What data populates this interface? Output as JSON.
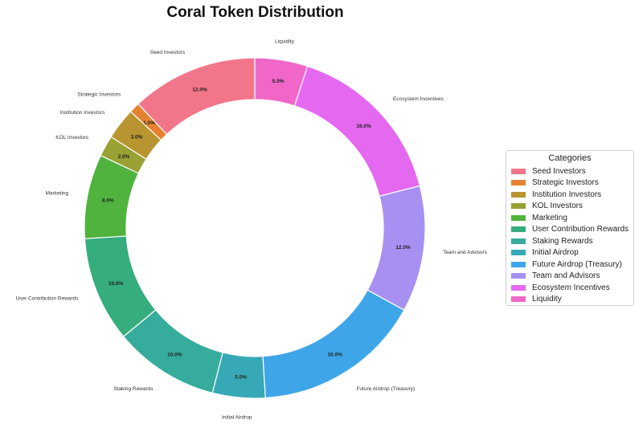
{
  "chart_data": {
    "type": "pie",
    "variant": "donut",
    "title": "Coral Token Distribution",
    "legend": {
      "title": "Categories",
      "placement": "right"
    },
    "slices": [
      {
        "label": "Seed Investors",
        "value": 12.0,
        "display": "12.0%",
        "color": "#f2768a"
      },
      {
        "label": "Strategic Investors",
        "value": 1.0,
        "display": "1.0%",
        "color": "#e6822f"
      },
      {
        "label": "Institution Investors",
        "value": 3.0,
        "display": "3.0%",
        "color": "#b89530"
      },
      {
        "label": "KOL Investors",
        "value": 2.0,
        "display": "2.0%",
        "color": "#99a135"
      },
      {
        "label": "Marketing",
        "value": 8.0,
        "display": "8.0%",
        "color": "#4fb33e"
      },
      {
        "label": "User Contribution Rewards",
        "value": 10.0,
        "display": "10.0%",
        "color": "#35ad7d"
      },
      {
        "label": "Staking Rewards",
        "value": 10.0,
        "display": "10.0%",
        "color": "#36ac9d"
      },
      {
        "label": "Initial Airdrop",
        "value": 5.0,
        "display": "5.0%",
        "color": "#37a9b6"
      },
      {
        "label": "Future Airdrop (Treasury)",
        "value": 16.0,
        "display": "16.0%",
        "color": "#3ea6e8"
      },
      {
        "label": "Team and Advisors",
        "value": 12.0,
        "display": "12.0%",
        "color": "#a890f2"
      },
      {
        "label": "Ecosystem Incentives",
        "value": 16.0,
        "display": "16.0%",
        "color": "#e468f0"
      },
      {
        "label": "Liquidity",
        "value": 5.0,
        "display": "5.0%",
        "color": "#f067c8"
      }
    ]
  }
}
